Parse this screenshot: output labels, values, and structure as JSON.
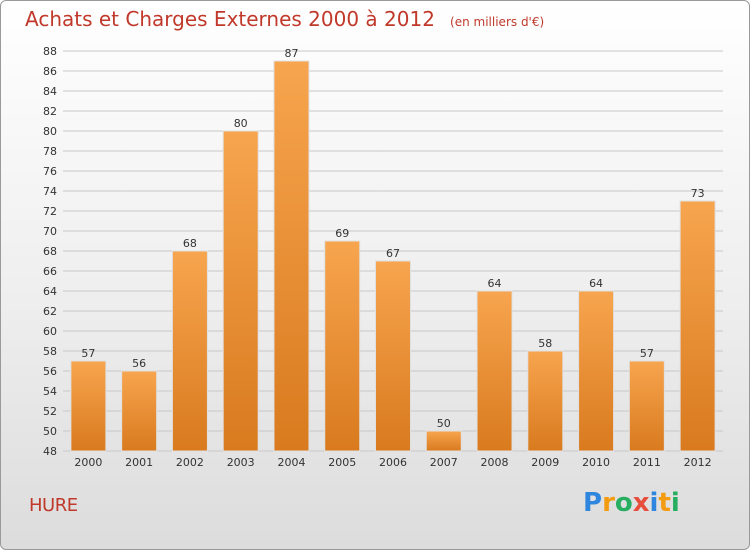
{
  "title": "Achats et Charges Externes 2000 à 2012",
  "subtitle": "(en milliers d'€)",
  "commune": "HURE",
  "logo": {
    "letters": [
      {
        "char": "P",
        "color": "#2e86de"
      },
      {
        "char": "r",
        "color": "#f39c12"
      },
      {
        "char": "o",
        "color": "#27ae60"
      },
      {
        "char": "x",
        "color": "#e74c3c"
      },
      {
        "char": "i",
        "color": "#2e86de"
      },
      {
        "char": "t",
        "color": "#f39c12"
      },
      {
        "char": "i",
        "color": "#27ae60"
      }
    ]
  },
  "chart_data": {
    "type": "bar",
    "categories": [
      "2000",
      "2001",
      "2002",
      "2003",
      "2004",
      "2005",
      "2006",
      "2007",
      "2008",
      "2009",
      "2010",
      "2011",
      "2012"
    ],
    "values": [
      57,
      56,
      68,
      80,
      87,
      69,
      67,
      50,
      64,
      58,
      64,
      57,
      73
    ],
    "ylim": [
      48,
      88
    ],
    "ytick_step": 2,
    "grid": true,
    "bar_color_light": "#f7a54f",
    "bar_color_dark": "#d97a1e"
  }
}
